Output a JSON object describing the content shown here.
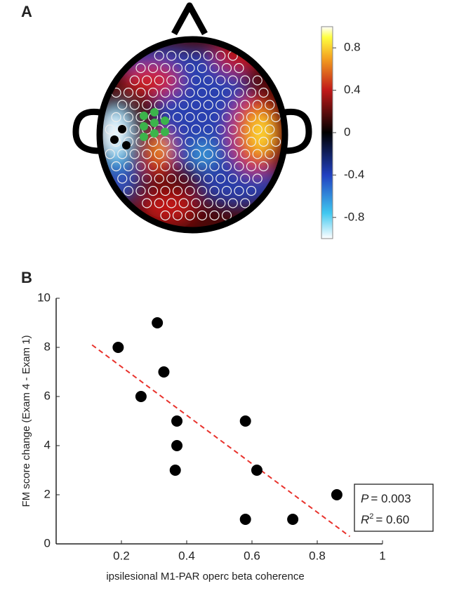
{
  "chart_data": [
    {
      "type": "topomap",
      "panel": "A",
      "clim": [
        -1,
        1
      ],
      "cticks": [
        0.8,
        0.4,
        0,
        -0.4,
        -0.8
      ]
    },
    {
      "type": "scatter",
      "panel": "B",
      "x": [
        0.19,
        0.31,
        0.33,
        0.26,
        0.37,
        0.37,
        0.365,
        0.58,
        0.615,
        0.58,
        0.725,
        0.86
      ],
      "values": [
        8,
        9,
        7,
        6,
        5,
        4,
        3,
        5,
        3,
        1,
        1,
        2
      ],
      "color": "#000000",
      "fit_line": {
        "x": [
          0.11,
          0.9
        ],
        "y": [
          8.1,
          0.3
        ],
        "color": "#e8322c"
      },
      "xlim": [
        0,
        1
      ],
      "xticks": [
        0.2,
        0.4,
        0.6,
        0.8,
        1
      ],
      "ylim": [
        0,
        10
      ],
      "yticks": [
        0,
        2,
        4,
        6,
        8,
        10
      ],
      "xlabel": "ipsilesional M1-PAR operc beta coherence",
      "ylabel": "FM score change (Exam 4 - Exam 1)",
      "annotations": [
        {
          "symbol": "P",
          "text": "= 0.003"
        },
        {
          "symbol": "R",
          "sup": "2",
          "text": "= 0.60"
        }
      ]
    }
  ]
}
